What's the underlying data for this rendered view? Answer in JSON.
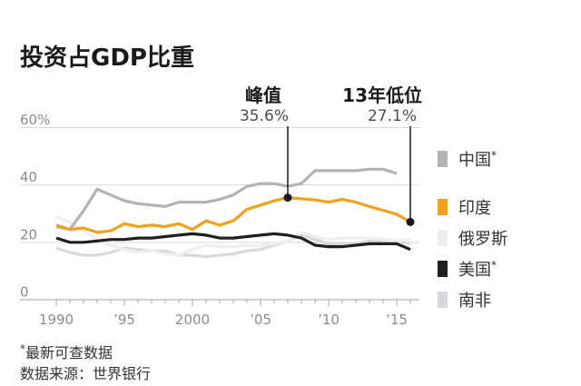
{
  "chart_data": {
    "type": "line",
    "title": "投资占GDP比重",
    "xlim": [
      1990,
      2016
    ],
    "ylim": [
      0,
      60
    ],
    "grid": true,
    "legend_position": "right",
    "x": [
      1990,
      1991,
      1992,
      1993,
      1994,
      1995,
      1996,
      1997,
      1998,
      1999,
      2000,
      2001,
      2002,
      2003,
      2004,
      2005,
      2006,
      2007,
      2008,
      2009,
      2010,
      2011,
      2012,
      2013,
      2014,
      2015,
      2016
    ],
    "x_ticks": [
      1990,
      1995,
      2000,
      2005,
      2010,
      2015
    ],
    "x_tick_labels": [
      "1990",
      "’95",
      "2000",
      "’05",
      "’10",
      "’15"
    ],
    "y_ticks": [
      0,
      20,
      40,
      60
    ],
    "y_tick_labels": [
      "0",
      "20",
      "40",
      "60%"
    ],
    "series": [
      {
        "name": "中国",
        "note": "*",
        "color": "#b3b3b3",
        "values": [
          25.5,
          24.5,
          31,
          38.5,
          36.5,
          34.5,
          33.5,
          33,
          32.5,
          34,
          34,
          34,
          35,
          36.5,
          39.5,
          40.5,
          40.5,
          39.5,
          40.5,
          45,
          45,
          45,
          45,
          45.5,
          45.5,
          44,
          null
        ]
      },
      {
        "name": "印度",
        "color": "#f0a11e",
        "values": [
          26,
          24.5,
          25,
          23.5,
          24,
          26.5,
          25.5,
          26,
          25.5,
          26.5,
          24.5,
          27.5,
          26,
          27.5,
          31.5,
          33,
          34.5,
          35.6,
          35.2,
          34.8,
          34,
          35,
          34,
          32.5,
          31.2,
          29.8,
          27.1
        ]
      },
      {
        "name": "俄罗斯",
        "color": "#eeeeee",
        "values": [
          29,
          27,
          24,
          21,
          19,
          17.5,
          16.5,
          17,
          16,
          15.5,
          17.5,
          19,
          18.5,
          18.5,
          19,
          19,
          19.5,
          20.5,
          23.5,
          22,
          21,
          21.5,
          21.5,
          21.5,
          21,
          20.5,
          21
        ]
      },
      {
        "name": "美国",
        "note": "*",
        "color": "#231f20",
        "values": [
          21.5,
          20,
          20,
          20.5,
          21,
          21,
          21.5,
          21.5,
          22,
          22.5,
          23,
          22.5,
          21.5,
          21.5,
          22,
          22.5,
          23,
          22.5,
          21.5,
          19,
          18.5,
          18.5,
          19,
          19.5,
          19.5,
          19.5,
          17.5
        ]
      },
      {
        "name": "南非",
        "color": "#d9d8dd",
        "values": [
          18,
          16.5,
          15.5,
          15.5,
          16.5,
          18,
          17.5,
          17,
          17,
          15.5,
          15.5,
          15,
          15.5,
          16,
          17,
          17.5,
          19,
          20.5,
          22.5,
          21,
          19.5,
          19.5,
          19.5,
          20.5,
          20.5,
          20.5,
          19.5
        ]
      }
    ],
    "annotations": [
      {
        "label": "峰值",
        "value_label": "35.6%",
        "x": 2007,
        "y": 35.6
      },
      {
        "label": "13年低位",
        "value_label": "27.1%",
        "x": 2016,
        "y": 27.1
      }
    ],
    "footnotes": {
      "marker": "*",
      "note": "最新可查数据",
      "source": "数据来源：世界银行"
    }
  }
}
